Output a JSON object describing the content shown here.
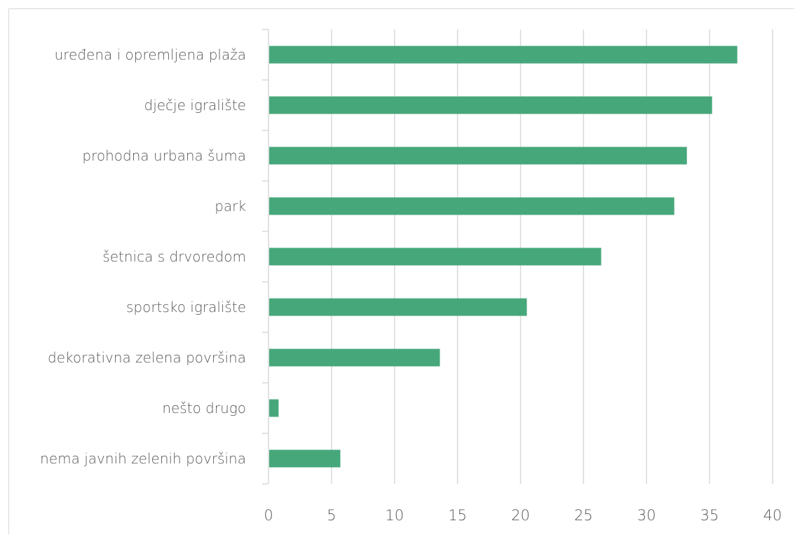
{
  "chart_data": {
    "type": "bar",
    "orientation": "horizontal",
    "categories": [
      "uređena i opremljena plaža",
      "dječje igralište",
      "prohodna urbana šuma",
      "park",
      "šetnica s drvoredom",
      "sportsko igralište",
      "dekorativna zelena površina",
      "nešto drugo",
      "nema javnih zelenih površina"
    ],
    "values": [
      37.2,
      35.2,
      33.2,
      32.2,
      26.4,
      20.5,
      13.6,
      0.8,
      5.7
    ],
    "xlim": [
      0,
      40
    ],
    "xticks": [
      0,
      5,
      10,
      15,
      20,
      25,
      30,
      35,
      40
    ],
    "title": "",
    "xlabel": "",
    "ylabel": "",
    "grid": "vertical",
    "bar_color": "#46a77b",
    "grid_color": "#d9d9d9"
  }
}
